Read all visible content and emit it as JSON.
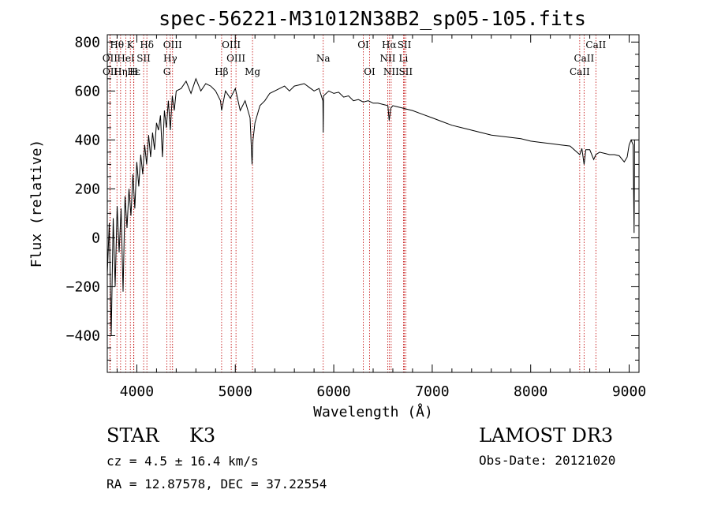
{
  "chart_data": {
    "type": "line",
    "title": "spec-56221-M31012N38B2_sp05-105.fits",
    "xlabel": "Wavelength (Å)",
    "ylabel": "Flux (relative)",
    "xlim": [
      3700,
      9100
    ],
    "ylim": [
      -550,
      830
    ],
    "xticks": [
      4000,
      5000,
      6000,
      7000,
      8000,
      9000
    ],
    "xtick_labels": [
      "4000",
      "5000",
      "6000",
      "7000",
      "8000",
      "9000"
    ],
    "yticks": [
      -400,
      -200,
      0,
      200,
      400,
      600,
      800
    ],
    "ytick_labels": [
      "−400",
      "−200",
      "0",
      "200",
      "400",
      "600",
      "800"
    ],
    "spectrum": {
      "name": "flux",
      "x": [
        3700,
        3720,
        3740,
        3760,
        3780,
        3800,
        3820,
        3840,
        3860,
        3880,
        3900,
        3920,
        3940,
        3960,
        3980,
        4000,
        4020,
        4040,
        4060,
        4080,
        4100,
        4120,
        4140,
        4160,
        4180,
        4200,
        4220,
        4240,
        4260,
        4280,
        4300,
        4320,
        4340,
        4360,
        4380,
        4400,
        4450,
        4500,
        4550,
        4600,
        4650,
        4700,
        4750,
        4800,
        4850,
        4861,
        4900,
        4950,
        5000,
        5050,
        5100,
        5150,
        5170,
        5180,
        5200,
        5250,
        5300,
        5350,
        5400,
        5450,
        5500,
        5550,
        5600,
        5650,
        5700,
        5750,
        5800,
        5850,
        5890,
        5893,
        5896,
        5950,
        6000,
        6050,
        6100,
        6150,
        6200,
        6250,
        6300,
        6350,
        6400,
        6450,
        6500,
        6550,
        6563,
        6580,
        6600,
        6650,
        6700,
        6750,
        6800,
        6900,
        7000,
        7100,
        7200,
        7300,
        7400,
        7500,
        7600,
        7700,
        7800,
        7900,
        8000,
        8100,
        8200,
        8300,
        8400,
        8498,
        8520,
        8542,
        8560,
        8600,
        8640,
        8662,
        8700,
        8750,
        8800,
        8850,
        8900,
        8950,
        8980,
        9000,
        9020,
        9040,
        9050,
        9055
      ],
      "values": [
        -150,
        60,
        -400,
        80,
        -200,
        130,
        -60,
        120,
        -220,
        170,
        40,
        200,
        90,
        260,
        120,
        310,
        210,
        340,
        260,
        380,
        300,
        420,
        330,
        430,
        360,
        470,
        440,
        500,
        330,
        520,
        450,
        560,
        440,
        580,
        520,
        600,
        610,
        640,
        590,
        650,
        600,
        630,
        620,
        600,
        560,
        520,
        600,
        570,
        610,
        520,
        560,
        490,
        300,
        400,
        470,
        540,
        560,
        590,
        600,
        610,
        620,
        600,
        620,
        625,
        630,
        615,
        600,
        610,
        560,
        430,
        580,
        600,
        590,
        595,
        575,
        580,
        560,
        565,
        555,
        560,
        550,
        550,
        545,
        540,
        480,
        530,
        540,
        535,
        530,
        525,
        520,
        505,
        490,
        475,
        460,
        450,
        440,
        430,
        420,
        415,
        410,
        405,
        395,
        390,
        385,
        380,
        375,
        340,
        365,
        300,
        360,
        360,
        320,
        340,
        350,
        345,
        340,
        340,
        335,
        310,
        330,
        380,
        400,
        380,
        20,
        400
      ]
    },
    "reference_lines": [
      {
        "label": "Hθ",
        "x": 3798,
        "row": 1
      },
      {
        "label": "K",
        "x": 3934,
        "row": 1
      },
      {
        "label": "Hδ",
        "x": 4102,
        "row": 1
      },
      {
        "label": "OIII",
        "x": 4363,
        "row": 1
      },
      {
        "label": "OIII",
        "x": 4959,
        "row": 1
      },
      {
        "label": "OI",
        "x": 6300,
        "row": 1
      },
      {
        "label": "Hα",
        "x": 6563,
        "row": 1
      },
      {
        "label": "SII",
        "x": 6717,
        "row": 1
      },
      {
        "label": "CaII",
        "x": 8662,
        "row": 1
      },
      {
        "label": "OII",
        "x": 3727,
        "row": 2
      },
      {
        "label": "HeI",
        "x": 3889,
        "row": 2
      },
      {
        "label": "SII",
        "x": 4069,
        "row": 2
      },
      {
        "label": "Hγ",
        "x": 4340,
        "row": 2
      },
      {
        "label": "OIII",
        "x": 5007,
        "row": 2
      },
      {
        "label": "Na",
        "x": 5893,
        "row": 2
      },
      {
        "label": "NII",
        "x": 6548,
        "row": 2
      },
      {
        "label": "Li",
        "x": 6708,
        "row": 2
      },
      {
        "label": "CaII",
        "x": 8542,
        "row": 2
      },
      {
        "label": "OII",
        "x": 3729,
        "row": 3
      },
      {
        "label": "Hε",
        "x": 3970,
        "row": 3
      },
      {
        "label": "Hη",
        "x": 3835,
        "row": 3
      },
      {
        "label": "H",
        "x": 3968,
        "row": 3
      },
      {
        "label": "G",
        "x": 4305,
        "row": 3
      },
      {
        "label": "Hβ",
        "x": 4861,
        "row": 3
      },
      {
        "label": "Mg",
        "x": 5175,
        "row": 3
      },
      {
        "label": "OI",
        "x": 6364,
        "row": 3
      },
      {
        "label": "NII",
        "x": 6583,
        "row": 3
      },
      {
        "label": "SII",
        "x": 6731,
        "row": 3
      },
      {
        "label": "CaII",
        "x": 8498,
        "row": 3
      }
    ]
  },
  "info": {
    "object_class": "STAR",
    "subclass": "K3",
    "redshift": "cz = 4.5 ± 16.4 km/s",
    "coords": "RA =  12.87578, DEC =  37.22554",
    "survey": "LAMOST DR3",
    "obs_date": "Obs-Date: 20121020"
  }
}
